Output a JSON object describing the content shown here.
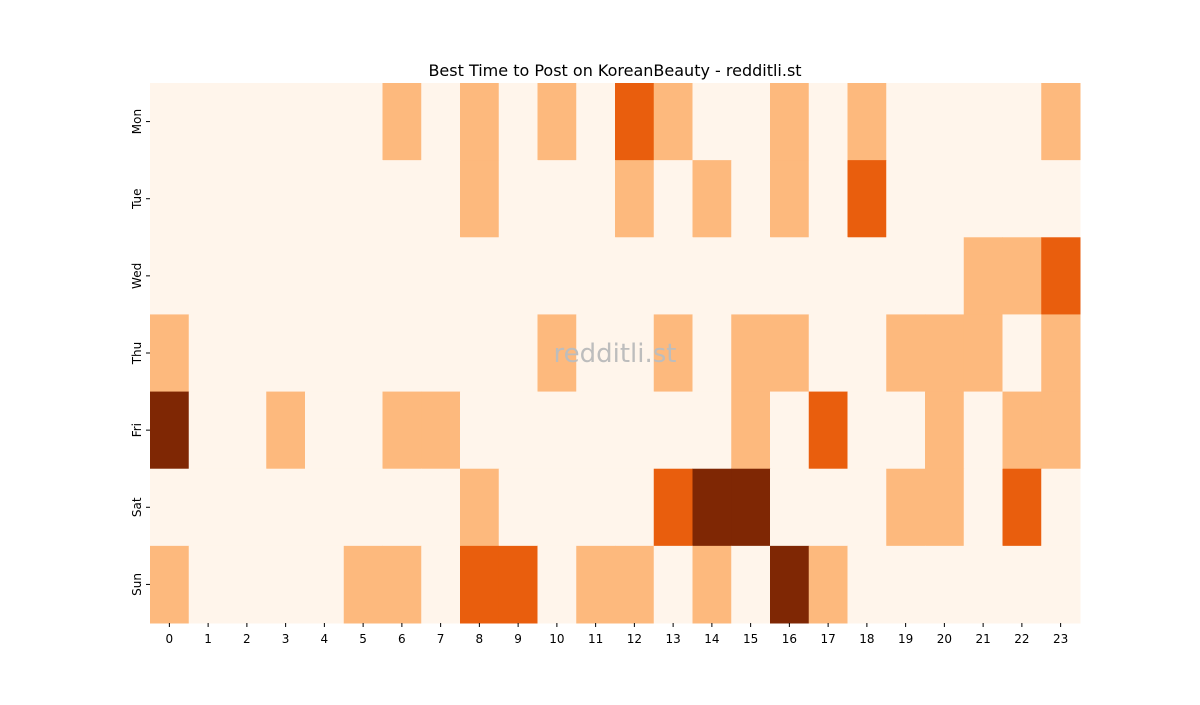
{
  "chart_data": {
    "type": "heatmap",
    "title": "Best Time to Post on KoreanBeauty - redditli.st",
    "watermark": "redditli.st",
    "xlabel": "",
    "ylabel": "",
    "x_categories": [
      "0",
      "1",
      "2",
      "3",
      "4",
      "5",
      "6",
      "7",
      "8",
      "9",
      "10",
      "11",
      "12",
      "13",
      "14",
      "15",
      "16",
      "17",
      "18",
      "19",
      "20",
      "21",
      "22",
      "23"
    ],
    "y_categories": [
      "Mon",
      "Tue",
      "Wed",
      "Thu",
      "Fri",
      "Sat",
      "Sun"
    ],
    "values": [
      [
        0,
        0,
        0,
        0,
        0,
        0,
        1,
        0,
        1,
        0,
        1,
        0,
        2,
        1,
        0,
        0,
        1,
        0,
        1,
        0,
        0,
        0,
        0,
        1
      ],
      [
        0,
        0,
        0,
        0,
        0,
        0,
        0,
        0,
        1,
        0,
        0,
        0,
        1,
        0,
        1,
        0,
        1,
        0,
        2,
        0,
        0,
        0,
        0,
        0
      ],
      [
        0,
        0,
        0,
        0,
        0,
        0,
        0,
        0,
        0,
        0,
        0,
        0,
        0,
        0,
        0,
        0,
        0,
        0,
        0,
        0,
        0,
        1,
        1,
        2
      ],
      [
        1,
        0,
        0,
        0,
        0,
        0,
        0,
        0,
        0,
        0,
        1,
        0,
        0,
        1,
        0,
        1,
        1,
        0,
        0,
        1,
        1,
        1,
        0,
        1
      ],
      [
        3,
        0,
        0,
        1,
        0,
        0,
        1,
        1,
        0,
        0,
        0,
        0,
        0,
        0,
        0,
        1,
        0,
        2,
        0,
        0,
        1,
        0,
        1,
        1
      ],
      [
        0,
        0,
        0,
        0,
        0,
        0,
        0,
        0,
        1,
        0,
        0,
        0,
        0,
        2,
        3,
        3,
        0,
        0,
        0,
        1,
        1,
        0,
        2,
        0
      ],
      [
        1,
        0,
        0,
        0,
        0,
        1,
        1,
        0,
        2,
        2,
        0,
        1,
        1,
        0,
        1,
        0,
        3,
        1,
        0,
        0,
        0,
        0,
        0,
        0
      ]
    ],
    "colormap": "Oranges",
    "color_levels": [
      "#fff5eb",
      "#fdb97d",
      "#e95e0d",
      "#7f2704"
    ],
    "colorbar": false,
    "grid": false
  }
}
